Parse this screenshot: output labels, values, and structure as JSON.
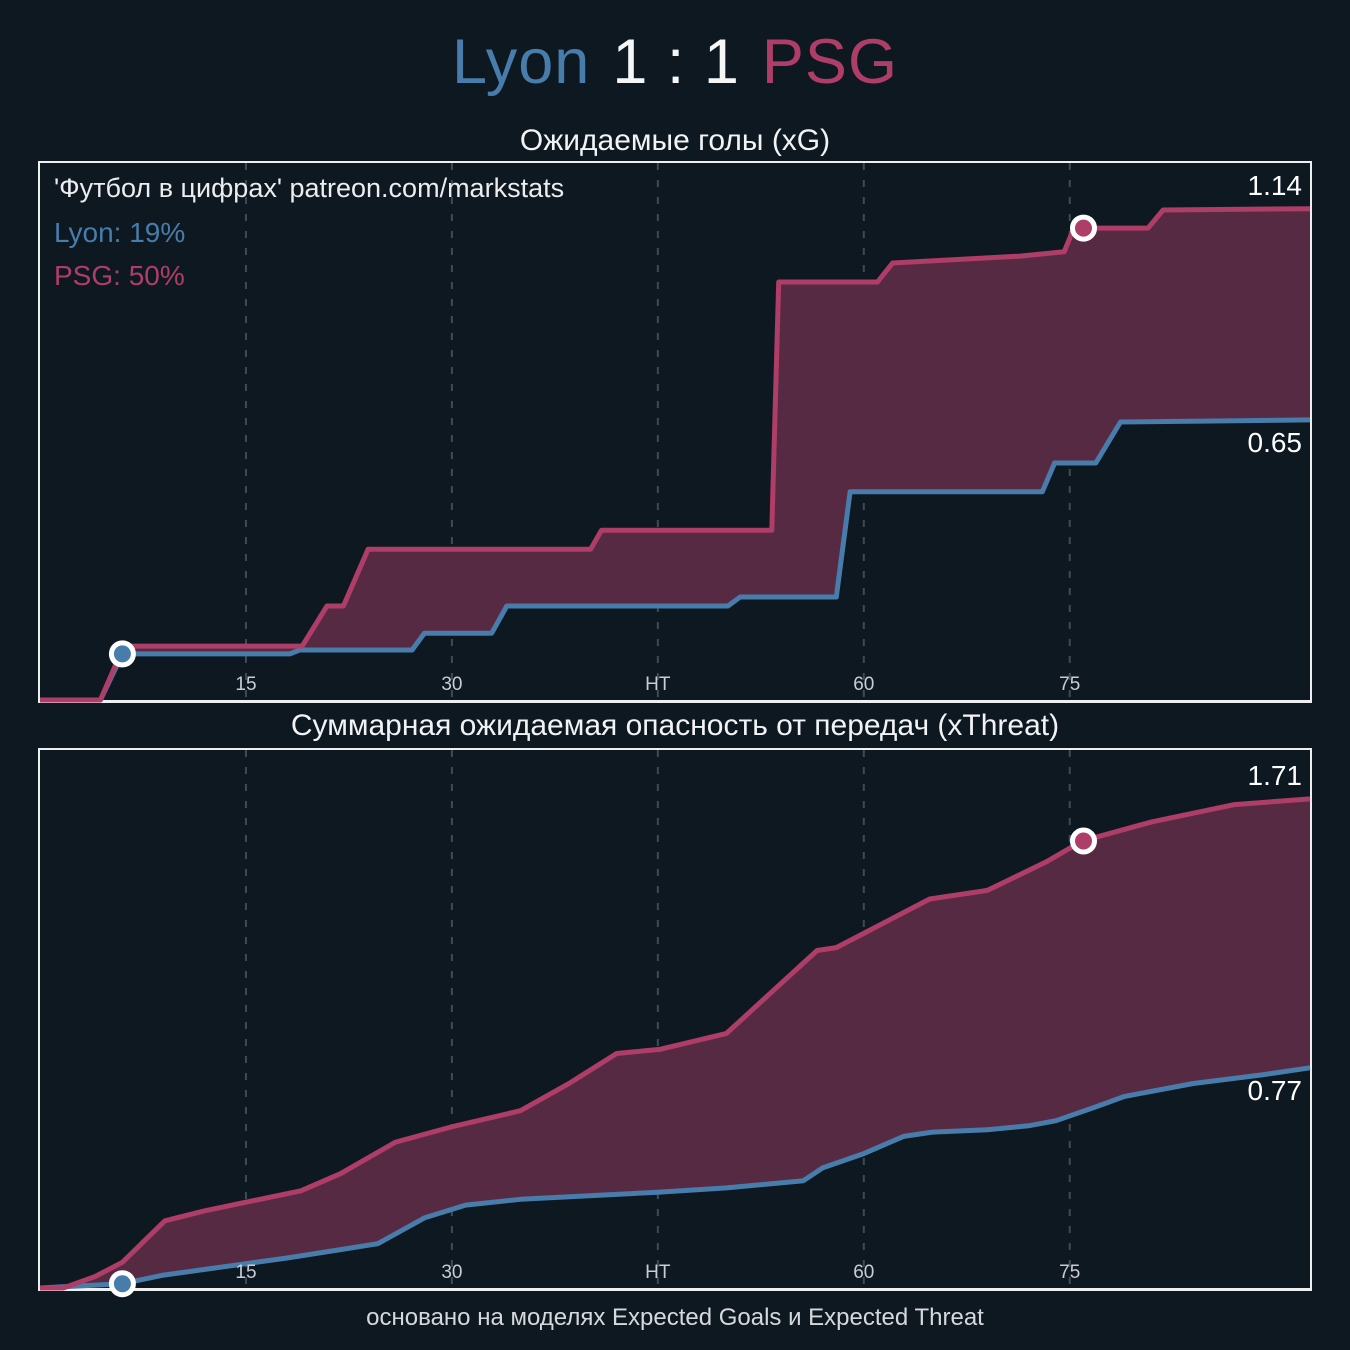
{
  "header": {
    "home_team": "Lyon",
    "score": "1 : 1",
    "away_team": "PSG"
  },
  "watermark": "'Футбол в цифрах' patreon.com/markstats",
  "legend": {
    "home": "Lyon: 19%",
    "away": "PSG: 50%"
  },
  "footer": "основано на моделях Expected Goals и Expected Threat",
  "colors": {
    "background": "#0e1821",
    "home": "#477cab",
    "away": "#ae3d68",
    "fill_between": "#572a44",
    "frame": "#edeff1",
    "grid": "#3f4a55",
    "text": "#f2f3f5",
    "muted_text": "#c8cdd3",
    "marker_ring": "#ffffff"
  },
  "chart_data": [
    {
      "type": "area",
      "title": "Ожидаемые голы (xG)",
      "xlabel": "",
      "ylabel": "",
      "xlim": [
        0,
        92.5
      ],
      "ylim": [
        0,
        1.246
      ],
      "grid": "vertical-dashed",
      "x_ticks": [
        {
          "min": 15,
          "label": "15"
        },
        {
          "min": 30,
          "label": "30"
        },
        {
          "min": 45,
          "label": "HT"
        },
        {
          "min": 60,
          "label": "60"
        },
        {
          "min": 75,
          "label": "75"
        }
      ],
      "series": [
        {
          "key": "psg",
          "name": "PSG",
          "end_label": "1.14",
          "final_value": 1.14,
          "goal_marker": {
            "minute": 76,
            "value": 1.095
          },
          "points": [
            [
              0,
              0
            ],
            [
              4.4,
              0
            ],
            [
              6.1,
              0.125
            ],
            [
              19.1,
              0.125
            ],
            [
              20.9,
              0.218
            ],
            [
              22.1,
              0.218
            ],
            [
              23.9,
              0.35
            ],
            [
              40.1,
              0.35
            ],
            [
              40.9,
              0.394
            ],
            [
              53.3,
              0.394
            ],
            [
              53.8,
              0.97
            ],
            [
              61,
              0.97
            ],
            [
              62.1,
              1.014
            ],
            [
              71.4,
              1.03
            ],
            [
              74.6,
              1.04
            ],
            [
              75.3,
              1.095
            ],
            [
              80.7,
              1.095
            ],
            [
              81.8,
              1.137
            ],
            [
              92.5,
              1.14
            ]
          ]
        },
        {
          "key": "lyon",
          "name": "Lyon",
          "end_label": "0.65",
          "final_value": 0.65,
          "goal_marker": {
            "minute": 6,
            "value": 0.107
          },
          "points": [
            [
              0,
              0
            ],
            [
              4.4,
              0
            ],
            [
              6,
              0.107
            ],
            [
              18.2,
              0.107
            ],
            [
              18.9,
              0.116
            ],
            [
              27.1,
              0.116
            ],
            [
              28,
              0.155
            ],
            [
              32.9,
              0.155
            ],
            [
              34,
              0.218
            ],
            [
              50.1,
              0.218
            ],
            [
              51,
              0.239
            ],
            [
              58,
              0.239
            ],
            [
              59,
              0.483
            ],
            [
              73,
              0.483
            ],
            [
              73.9,
              0.55
            ],
            [
              76.9,
              0.55
            ],
            [
              78.7,
              0.645
            ],
            [
              92.5,
              0.65
            ]
          ]
        }
      ]
    },
    {
      "type": "area",
      "title": "Суммарная ожидаемая опасность от передач (xThreat)",
      "xlabel": "",
      "ylabel": "",
      "xlim": [
        0,
        92.5
      ],
      "ylim": [
        0,
        1.881
      ],
      "grid": "vertical-dashed",
      "x_ticks": [
        {
          "min": 15,
          "label": "15"
        },
        {
          "min": 30,
          "label": "30"
        },
        {
          "min": 45,
          "label": "HT"
        },
        {
          "min": 60,
          "label": "60"
        },
        {
          "min": 75,
          "label": "75"
        }
      ],
      "series": [
        {
          "key": "psg",
          "name": "PSG",
          "end_label": "1.71",
          "final_value": 1.71,
          "goal_marker": {
            "minute": 76,
            "value": 1.563
          },
          "points": [
            [
              0,
              0
            ],
            [
              1.7,
              0
            ],
            [
              4,
              0.04
            ],
            [
              6,
              0.09
            ],
            [
              7.5,
              0.16
            ],
            [
              9.1,
              0.235
            ],
            [
              12,
              0.27
            ],
            [
              15,
              0.3
            ],
            [
              19,
              0.34
            ],
            [
              21.9,
              0.4
            ],
            [
              25.9,
              0.51
            ],
            [
              30.1,
              0.565
            ],
            [
              35,
              0.62
            ],
            [
              38.6,
              0.717
            ],
            [
              42,
              0.82
            ],
            [
              45.2,
              0.835
            ],
            [
              50,
              0.89
            ],
            [
              56.6,
              1.18
            ],
            [
              58,
              1.19
            ],
            [
              64.8,
              1.36
            ],
            [
              69,
              1.39
            ],
            [
              73.3,
              1.49
            ],
            [
              75.9,
              1.563
            ],
            [
              81,
              1.63
            ],
            [
              87,
              1.69
            ],
            [
              92.5,
              1.71
            ]
          ]
        },
        {
          "key": "lyon",
          "name": "Lyon",
          "end_label": "0.77",
          "final_value": 0.77,
          "goal_marker": {
            "minute": 6,
            "value": 0.015
          },
          "points": [
            [
              0,
              0
            ],
            [
              1.5,
              0.004
            ],
            [
              6,
              0.015
            ],
            [
              9,
              0.045
            ],
            [
              15,
              0.085
            ],
            [
              18,
              0.105
            ],
            [
              22,
              0.135
            ],
            [
              24.6,
              0.155
            ],
            [
              28,
              0.245
            ],
            [
              31,
              0.29
            ],
            [
              35,
              0.31
            ],
            [
              45,
              0.335
            ],
            [
              50,
              0.35
            ],
            [
              55.6,
              0.375
            ],
            [
              57,
              0.42
            ],
            [
              60,
              0.47
            ],
            [
              62.9,
              0.53
            ],
            [
              65,
              0.545
            ],
            [
              69,
              0.553
            ],
            [
              72,
              0.567
            ],
            [
              74,
              0.585
            ],
            [
              77,
              0.635
            ],
            [
              79,
              0.67
            ],
            [
              84,
              0.715
            ],
            [
              89,
              0.745
            ],
            [
              92.5,
              0.77
            ]
          ]
        }
      ]
    }
  ]
}
